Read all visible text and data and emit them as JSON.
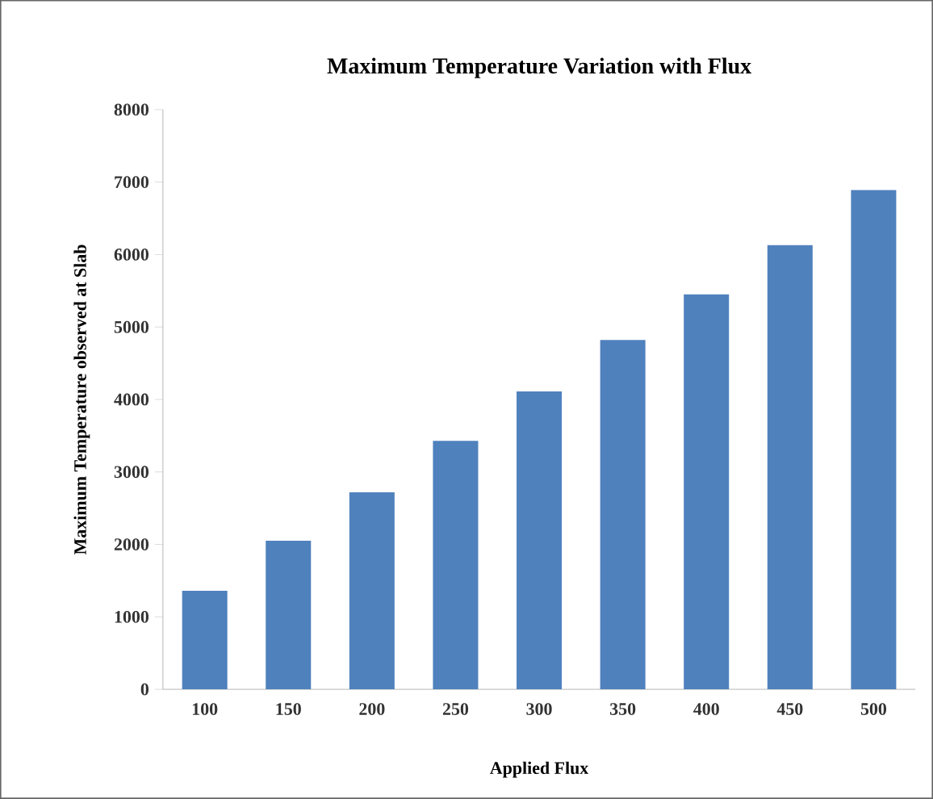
{
  "chart_data": {
    "type": "bar",
    "title": "Maximum Temperature Variation with Flux",
    "xlabel": "Applied Flux",
    "ylabel": "Maximum Temperature observed at Slab",
    "categories": [
      "100",
      "150",
      "200",
      "250",
      "300",
      "350",
      "400",
      "450",
      "500"
    ],
    "values": [
      1360,
      2050,
      2720,
      3430,
      4110,
      4820,
      5450,
      6130,
      6890
    ],
    "color": "#4f81bd",
    "ylim": [
      0,
      8000
    ],
    "yticks": [
      0,
      1000,
      2000,
      3000,
      4000,
      5000,
      6000,
      7000,
      8000
    ],
    "grid": false
  }
}
